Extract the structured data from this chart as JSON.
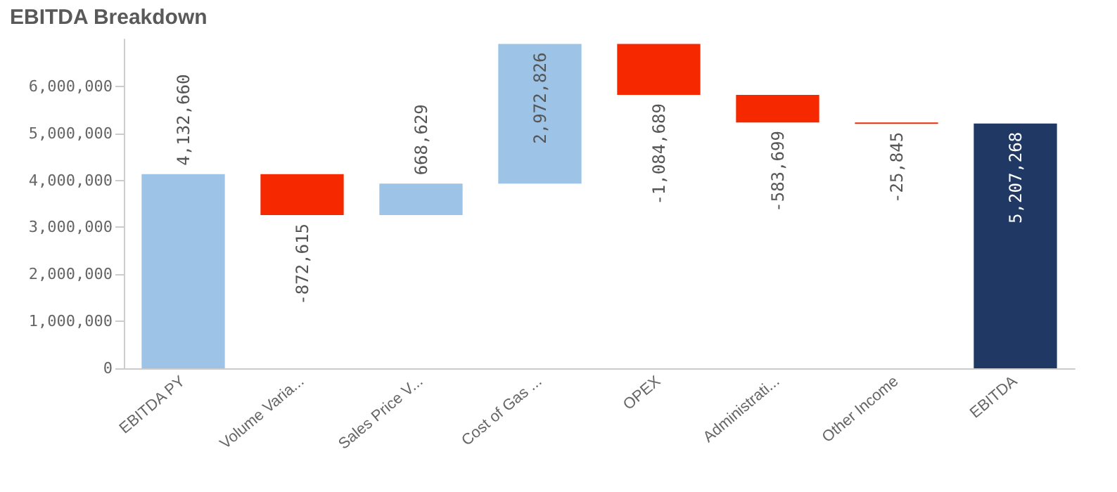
{
  "chart_data": {
    "type": "bar",
    "title": "EBITDA Breakdown",
    "categories": [
      "EBITDA PY",
      "Volume Varia...",
      "Sales Price V...",
      "Cost of Gas ...",
      "OPEX",
      "Administrati...",
      "Other Income",
      "EBITDA"
    ],
    "values": [
      4132660,
      -872615,
      668629,
      2972826,
      -1084689,
      -583699,
      -25845,
      5207268
    ],
    "base": [
      0,
      4132660,
      3260045,
      3928674,
      6901500,
      5816811,
      5233112,
      0
    ],
    "colors": [
      "#9dc3e6",
      "#f52800",
      "#9dc3e6",
      "#9dc3e6",
      "#f52800",
      "#f52800",
      "#f52800",
      "#1f3864"
    ],
    "value_labels": [
      "4,132,660",
      "-872,615",
      "668,629",
      "2,972,826",
      "-1,084,689",
      "-583,699",
      "-25,845",
      "5,207,268"
    ],
    "ylim": [
      0,
      7000000
    ],
    "yticks": [
      {
        "value": 0,
        "label": "0"
      },
      {
        "value": 1000000,
        "label": "1,000,000"
      },
      {
        "value": 2000000,
        "label": "2,000,000"
      },
      {
        "value": 3000000,
        "label": "3,000,000"
      },
      {
        "value": 4000000,
        "label": "4,000,000"
      },
      {
        "value": 5000000,
        "label": "5,000,000"
      },
      {
        "value": 6000000,
        "label": "6,000,000"
      }
    ],
    "grid": false
  }
}
